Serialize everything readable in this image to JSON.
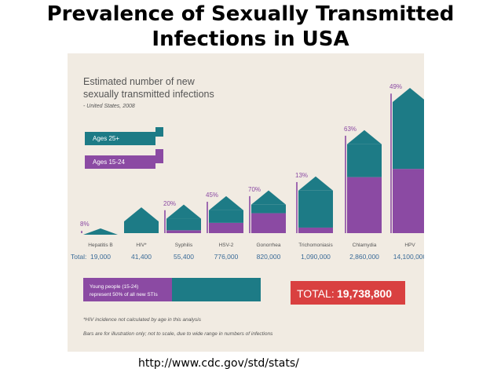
{
  "slide": {
    "title_line1": "Prevalence of Sexually Transmitted",
    "title_line2": "Infections in USA",
    "source": "http://www.cdc.gov/std/stats/"
  },
  "colors": {
    "teal": "#1d7b86",
    "purple": "#8b4aa3",
    "red": "#d94040",
    "panel_bg": "#f1ebe2",
    "text_gray": "#555555",
    "value_blue": "#3a6b98"
  },
  "chart_data": {
    "type": "bar",
    "title_line1": "Estimated number of new",
    "title_line2": "sexually transmitted infections",
    "subtitle": "- United States, 2008",
    "categories": [
      "Hepatitis B",
      "HIV*",
      "Syphilis",
      "HSV-2",
      "Gonorrhea",
      "Trichomoniasis",
      "Chlamydia",
      "HPV"
    ],
    "totals_label": "Total:",
    "totals": [
      "19,000",
      "41,400",
      "55,400",
      "776,000",
      "820,000",
      "1,090,000",
      "2,860,000",
      "14,100,000"
    ],
    "youth_share_pct": [
      8,
      null,
      20,
      45,
      70,
      13,
      63,
      49
    ],
    "youth_share_labels": [
      "8%",
      "",
      "20%",
      "45%",
      "70%",
      "13%",
      "63%",
      "49%"
    ],
    "illustrative_bar_height": [
      0.0,
      0.15,
      0.17,
      0.23,
      0.27,
      0.37,
      0.7,
      1.0
    ],
    "series": [
      {
        "name": "Ages 25+",
        "color": "#1d7b86"
      },
      {
        "name": "Ages 15-24",
        "color": "#8b4aa3"
      }
    ],
    "legend_placement": "top-left",
    "youth_box_line1": "Young people (15-24)",
    "youth_box_line2": "represent 50% of all new STIs",
    "youth_box_pct": 50,
    "total_label": "TOTAL:",
    "total_value": "19,738,800",
    "footnote1": "*HIV incidence not calculated by age in this analysis",
    "footnote2": "Bars are for illustration only; not to scale, due to wide range in numbers of infections"
  }
}
